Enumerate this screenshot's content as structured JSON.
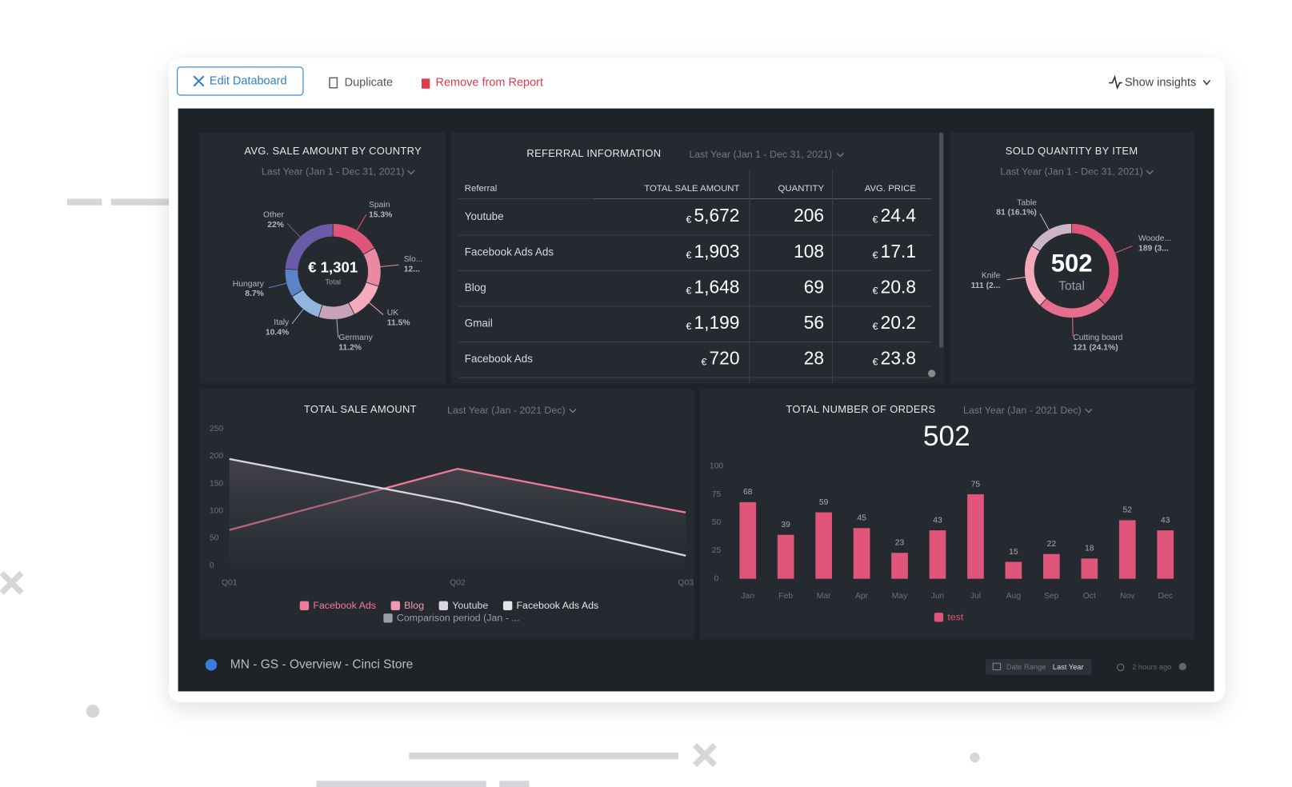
{
  "toolbar": {
    "edit": "Edit Databoard",
    "duplicate": "Duplicate",
    "remove": "Remove from Report",
    "insights": "Show insights"
  },
  "chart_data": [
    {
      "type": "pie",
      "title": "AVG. SALE AMOUNT BY COUNTRY",
      "subtitle": "Last Year (Jan 1 - Dec 31, 2021)",
      "center_value": "€ 1,301",
      "center_label": "Total",
      "categories": [
        "Spain",
        "Slo...",
        "UK",
        "Germany",
        "Italy",
        "Hungary",
        "Other"
      ],
      "values": [
        15.3,
        12,
        11.5,
        11.2,
        10.4,
        8.7,
        22
      ],
      "value_labels": [
        "15.3%",
        "12...",
        "11.5%",
        "11.2%",
        "10.4%",
        "8.7%",
        "22%"
      ],
      "colors": [
        "#e0557a",
        "#ea8aa2",
        "#f3aabb",
        "#c7a2b9",
        "#8fb6de",
        "#5d83c7",
        "#6a5ba6"
      ]
    },
    {
      "type": "pie",
      "title": "SOLD QUANTITY BY ITEM",
      "subtitle": "Last Year (Jan 1 - Dec 31, 2021)",
      "center_value": "502",
      "center_label": "Total",
      "categories": [
        "Woode...",
        "Cutting board",
        "Knife",
        "Table"
      ],
      "values": [
        189,
        121,
        111,
        81
      ],
      "value_labels": [
        "189 (3...",
        "121 (24.1%)",
        "111 (2...",
        "81 (16.1%)"
      ],
      "colors": [
        "#e0557a",
        "#e66d8e",
        "#f4a8ba",
        "#cbb5c8"
      ]
    },
    {
      "type": "line",
      "title": "TOTAL SALE AMOUNT",
      "subtitle": "Last Year (Jan - 2021 Dec)",
      "categories": [
        "Q01",
        "Q02",
        "Q03"
      ],
      "series": [
        {
          "name": "Facebook Ads",
          "color": "#f07a98",
          "values": [
            65,
            177,
            97
          ]
        },
        {
          "name": "Blog",
          "color": "#f49ab0",
          "values": [
            null,
            null,
            null
          ]
        },
        {
          "name": "Youtube",
          "color": "#d9d6e0",
          "values": [
            195,
            115,
            18
          ]
        },
        {
          "name": "Facebook Ads Ads",
          "color": "#e6e6e6",
          "values": [
            null,
            null,
            null
          ]
        }
      ],
      "comparison_label": "Comparison period (Jan - ...",
      "ylim": [
        0,
        250
      ],
      "yticks": [
        0,
        50,
        100,
        150,
        200,
        250
      ]
    },
    {
      "type": "bar",
      "title": "TOTAL NUMBER OF ORDERS",
      "subtitle": "Last Year (Jan - 2021 Dec)",
      "big_number": "502",
      "categories": [
        "Jan",
        "Feb",
        "Mar",
        "Apr",
        "May",
        "Jun",
        "Jul",
        "Aug",
        "Sep",
        "Oct",
        "Nov",
        "Dec"
      ],
      "series": [
        {
          "name": "test",
          "color": "#e0557a",
          "values": [
            68,
            39,
            59,
            45,
            23,
            43,
            75,
            15,
            22,
            18,
            52,
            43
          ]
        }
      ],
      "ylim": [
        0,
        100
      ],
      "yticks": [
        0,
        25,
        50,
        75,
        100
      ]
    }
  ],
  "table": {
    "title": "REFERRAL INFORMATION",
    "subtitle": "Last Year (Jan 1 - Dec 31, 2021)",
    "currency": "€",
    "header": [
      "Referral",
      "TOTAL SALE AMOUNT",
      "QUANTITY",
      "AVG. PRICE"
    ],
    "rows": [
      [
        "Youtube",
        "5,672",
        "206",
        "24.4"
      ],
      [
        "Facebook Ads Ads",
        "1,903",
        "108",
        "17.1"
      ],
      [
        "Blog",
        "1,648",
        "69",
        "20.8"
      ],
      [
        "Gmail",
        "1,199",
        "56",
        "20.2"
      ],
      [
        "Facebook Ads",
        "720",
        "28",
        "23.8"
      ]
    ]
  },
  "footer": {
    "name": "MN - GS - Overview - Cinci Store",
    "date_range_label": "Date Range",
    "date_range": "Last Year",
    "updated": "2 hours ago"
  }
}
